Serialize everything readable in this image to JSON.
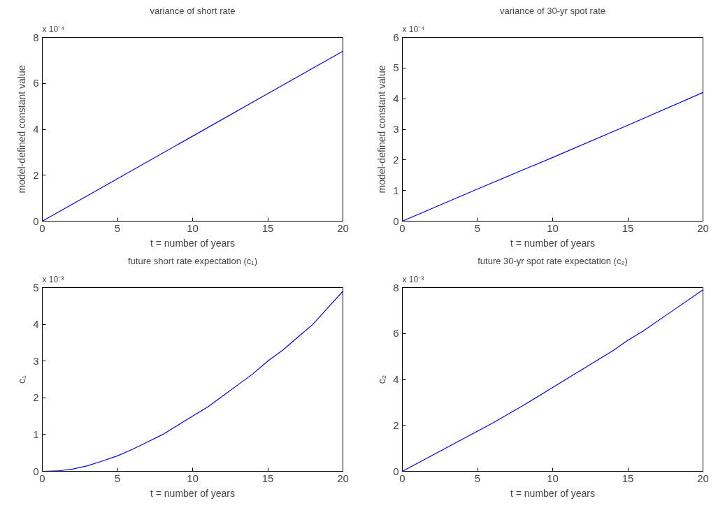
{
  "chart_data": [
    {
      "type": "line",
      "title": "variance of short rate",
      "xlabel": "t = number of years",
      "ylabel": "model-defined constant value",
      "annotations": [
        "x 10⁻⁴"
      ],
      "x": [
        0,
        5,
        10,
        15,
        20
      ],
      "series": [
        {
          "color": "#0000ff",
          "values": [
            0,
            1.85,
            3.7,
            5.55,
            7.4
          ]
        }
      ],
      "xlim": [
        0,
        20
      ],
      "xticks": [
        0,
        5,
        10,
        15,
        20
      ],
      "ylim": [
        0,
        8
      ],
      "yticks": [
        0,
        2,
        4,
        6,
        8
      ],
      "grid": false
    },
    {
      "type": "line",
      "title": "variance of 30-yr spot rate",
      "xlabel": "t = number of years",
      "ylabel": "model-defined constant value",
      "annotations": [
        "x 10⁻⁴"
      ],
      "x": [
        0,
        5,
        10,
        15,
        20
      ],
      "series": [
        {
          "color": "#0000ff",
          "values": [
            0,
            1.05,
            2.08,
            3.13,
            4.2
          ]
        }
      ],
      "xlim": [
        0,
        20
      ],
      "xticks": [
        0,
        5,
        10,
        15,
        20
      ],
      "ylim": [
        0,
        6
      ],
      "yticks": [
        0,
        1,
        2,
        3,
        4,
        5,
        6
      ],
      "grid": false
    },
    {
      "type": "line",
      "title": "future short rate expectation (c₁)",
      "xlabel": "t = number of years",
      "ylabel": "c₁",
      "annotations": [
        "x 10⁻³"
      ],
      "x": [
        0,
        1,
        2,
        3,
        4,
        5,
        6,
        7,
        8,
        9,
        10,
        11,
        12,
        13,
        14,
        15,
        16,
        17,
        18,
        19,
        20
      ],
      "series": [
        {
          "color": "#0000ff",
          "values": [
            0,
            0.01,
            0.06,
            0.15,
            0.28,
            0.42,
            0.6,
            0.8,
            1.0,
            1.25,
            1.5,
            1.75,
            2.05,
            2.35,
            2.65,
            3.0,
            3.3,
            3.65,
            4.0,
            4.45,
            4.9
          ]
        }
      ],
      "xlim": [
        0,
        20
      ],
      "xticks": [
        0,
        5,
        10,
        15,
        20
      ],
      "ylim": [
        0,
        5
      ],
      "yticks": [
        0,
        1,
        2,
        3,
        4,
        5
      ],
      "grid": false
    },
    {
      "type": "line",
      "title": "future 30-yr spot rate expectation (c₂)",
      "xlabel": "t = number of years",
      "ylabel": "c₂",
      "annotations": [
        "x 10⁻³"
      ],
      "x": [
        0,
        2,
        4,
        5,
        6,
        8,
        10,
        12,
        14,
        15,
        16,
        18,
        20
      ],
      "series": [
        {
          "color": "#0000ff",
          "values": [
            0,
            0.7,
            1.4,
            1.75,
            2.1,
            2.85,
            3.65,
            4.45,
            5.25,
            5.7,
            6.1,
            7.0,
            7.9
          ]
        }
      ],
      "xlim": [
        0,
        20
      ],
      "xticks": [
        0,
        5,
        10,
        15,
        20
      ],
      "ylim": [
        0,
        8
      ],
      "yticks": [
        0,
        2,
        4,
        6,
        8
      ],
      "grid": false
    }
  ]
}
